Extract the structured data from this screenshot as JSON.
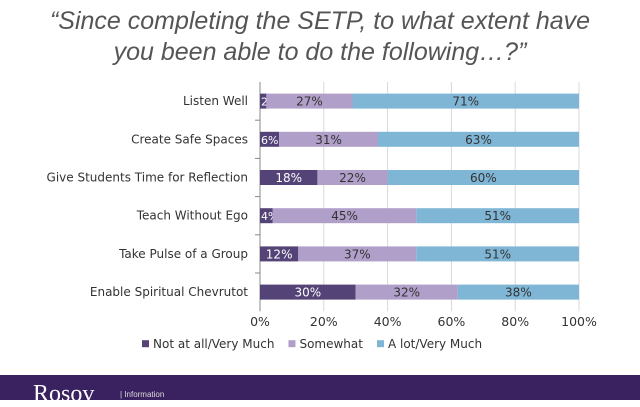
{
  "question": [
    "“Since completing the SETP, to what extent have",
    "you been able to do the following…?”"
  ],
  "colors": {
    "not_at_all": "#544376",
    "somewhat": "#b09fc9",
    "a_lot": "#7fb5d5",
    "footer": "#3a2160"
  },
  "chart_data": {
    "type": "bar",
    "orientation": "horizontal",
    "stacked": true,
    "categories": [
      "Listen Well",
      "Create Safe Spaces",
      "Give Students Time for Reflection",
      "Teach Without Ego",
      "Take Pulse of a Group",
      "Enable Spiritual Chevrutot"
    ],
    "series": [
      {
        "name": "Not at all/Very Much",
        "values": [
          2,
          6,
          18,
          4,
          12,
          30
        ]
      },
      {
        "name": "Somewhat",
        "values": [
          27,
          31,
          22,
          45,
          37,
          32
        ]
      },
      {
        "name": "A lot/Very Much",
        "values": [
          71,
          63,
          60,
          51,
          51,
          38
        ]
      }
    ],
    "xlim": [
      0,
      100
    ],
    "x_ticks": [
      "0%",
      "20%",
      "40%",
      "60%",
      "80%",
      "100%"
    ],
    "grid": true,
    "legend": "bottom"
  },
  "footer": {
    "logo": "Rosov",
    "tagline": "| Information"
  }
}
